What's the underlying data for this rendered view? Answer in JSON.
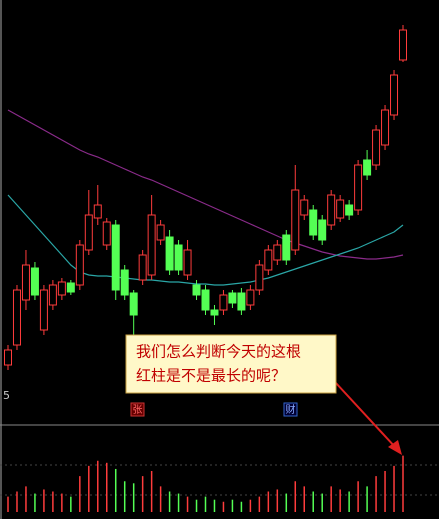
{
  "chart_data": {
    "type": "candlestick",
    "ylim": [
      0,
      400
    ],
    "up_color": "#ff3c3c",
    "down_color": "#54ff54",
    "open": [
      35,
      55,
      100,
      132,
      70,
      95,
      105,
      117,
      115,
      150,
      182,
      155,
      175,
      130,
      107,
      120,
      125,
      160,
      163,
      155,
      125,
      115,
      110,
      90,
      90,
      107,
      107,
      95,
      110,
      130,
      140,
      165,
      150,
      185,
      190,
      180,
      175,
      182,
      195,
      190,
      240,
      235,
      255,
      285,
      340
    ],
    "close": [
      50,
      110,
      135,
      105,
      110,
      115,
      118,
      108,
      155,
      185,
      195,
      178,
      110,
      105,
      85,
      145,
      185,
      175,
      130,
      130,
      150,
      105,
      90,
      85,
      105,
      97,
      90,
      110,
      135,
      150,
      155,
      140,
      210,
      200,
      165,
      160,
      205,
      200,
      185,
      235,
      225,
      270,
      290,
      325,
      370
    ],
    "high": [
      55,
      115,
      150,
      138,
      115,
      120,
      122,
      120,
      160,
      210,
      215,
      182,
      180,
      135,
      110,
      150,
      205,
      180,
      170,
      160,
      160,
      120,
      115,
      95,
      110,
      110,
      112,
      115,
      140,
      155,
      160,
      170,
      235,
      205,
      195,
      185,
      210,
      205,
      200,
      240,
      250,
      275,
      295,
      330,
      375
    ],
    "low": [
      30,
      50,
      90,
      100,
      65,
      90,
      100,
      105,
      110,
      145,
      175,
      150,
      100,
      100,
      55,
      115,
      120,
      155,
      125,
      125,
      120,
      100,
      85,
      75,
      85,
      92,
      85,
      90,
      105,
      125,
      135,
      135,
      145,
      180,
      160,
      155,
      170,
      178,
      180,
      185,
      220,
      230,
      250,
      280,
      338
    ],
    "lines": [
      {
        "color": "#8a2b8a",
        "values": [
          290,
          285,
          280,
          275,
          270,
          265,
          260,
          255,
          250,
          246,
          243,
          239,
          235,
          231,
          227,
          223,
          220,
          216,
          212,
          208,
          204,
          200,
          196,
          192,
          188,
          184,
          180,
          176,
          172,
          168,
          164,
          160,
          157,
          154,
          151,
          148,
          146,
          144,
          143,
          142,
          141,
          141,
          142,
          143,
          145
        ]
      },
      {
        "color": "#2aa6a6",
        "values": [
          205,
          195,
          185,
          175,
          165,
          155,
          145,
          135,
          128,
          125,
          124,
          124,
          123,
          122,
          121,
          120,
          120,
          119,
          118,
          118,
          117,
          116,
          116,
          115,
          115,
          116,
          117,
          118,
          120,
          122,
          125,
          128,
          131,
          134,
          137,
          140,
          143,
          146,
          149,
          152,
          156,
          160,
          164,
          168,
          175
        ]
      }
    ],
    "volume": {
      "ylim": [
        0,
        80
      ],
      "values": [
        15,
        20,
        25,
        18,
        22,
        20,
        18,
        15,
        35,
        45,
        50,
        48,
        42,
        30,
        28,
        35,
        40,
        25,
        20,
        18,
        15,
        12,
        15,
        12,
        10,
        12,
        10,
        12,
        15,
        20,
        22,
        18,
        30,
        25,
        20,
        18,
        25,
        22,
        20,
        30,
        25,
        35,
        40,
        45,
        55
      ]
    },
    "axis_label": "5",
    "markers": [
      "张",
      "财"
    ],
    "annotation": [
      "我们怎么判断今天的这根",
      "红柱是不是最长的呢？"
    ]
  }
}
